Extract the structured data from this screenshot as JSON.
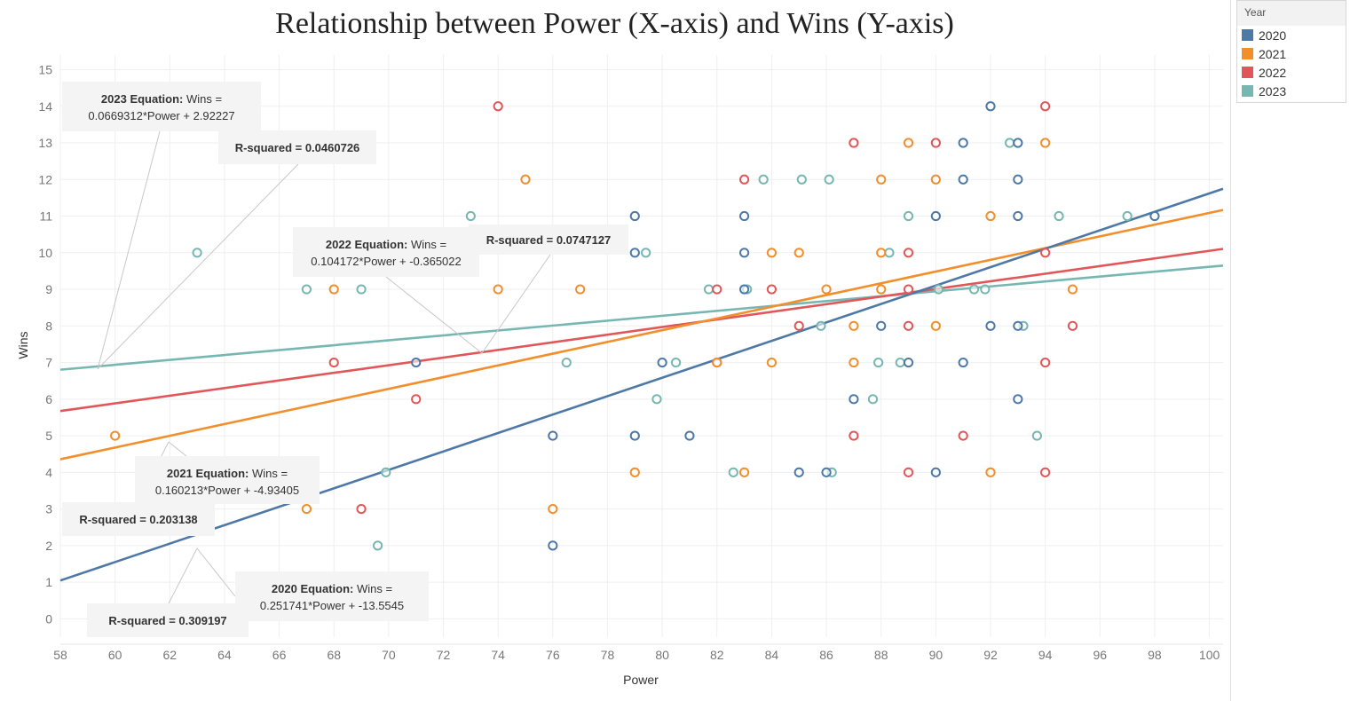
{
  "title": "Relationship between Power (X-axis) and Wins (Y-axis)",
  "legend": {
    "title": "Year",
    "items": [
      {
        "label": "2020",
        "color": "#4e79a7"
      },
      {
        "label": "2021",
        "color": "#f28e2b"
      },
      {
        "label": "2022",
        "color": "#e15759"
      },
      {
        "label": "2023",
        "color": "#76b7b2"
      }
    ]
  },
  "annotations": [
    {
      "series": "2023",
      "bold": "2023 Equation:",
      "text1": " Wins =",
      "text2": "0.0669312*Power + 2.92227"
    },
    {
      "series": "2023",
      "bold": "R-squared = 0.0460726",
      "text1": "",
      "text2": ""
    },
    {
      "series": "2022",
      "bold": "2022 Equation:",
      "text1": " Wins =",
      "text2": "0.104172*Power + -0.365022"
    },
    {
      "series": "2022",
      "bold": "R-squared = 0.0747127",
      "text1": "",
      "text2": ""
    },
    {
      "series": "2021",
      "bold": "2021 Equation:",
      "text1": " Wins =",
      "text2": "0.160213*Power + -4.93405"
    },
    {
      "series": "2021",
      "bold": "R-squared = 0.203138",
      "text1": "",
      "text2": ""
    },
    {
      "series": "2020",
      "bold": "2020 Equation:",
      "text1": " Wins =",
      "text2": "0.251741*Power + -13.5545"
    },
    {
      "series": "2020",
      "bold": "R-squared = 0.309197",
      "text1": "",
      "text2": ""
    }
  ],
  "chart_data": {
    "type": "scatter",
    "title": "Relationship between Power (X-axis) and Wins (Y-axis)",
    "xlabel": "Power",
    "ylabel": "Wins",
    "xlim": [
      58,
      100.5
    ],
    "ylim": [
      -0.5,
      15.4
    ],
    "xticks": [
      58,
      60,
      62,
      64,
      66,
      68,
      70,
      72,
      74,
      76,
      78,
      80,
      82,
      84,
      86,
      88,
      90,
      92,
      94,
      96,
      98,
      100
    ],
    "yticks": [
      0,
      1,
      2,
      3,
      4,
      5,
      6,
      7,
      8,
      9,
      10,
      11,
      12,
      13,
      14,
      15
    ],
    "grid": true,
    "legend_position": "top-right",
    "series": [
      {
        "name": "2020",
        "color": "#4e79a7",
        "trend": {
          "slope": 0.251741,
          "intercept": -13.5545
        },
        "points": [
          [
            92,
            14
          ],
          [
            91,
            13
          ],
          [
            93,
            13
          ],
          [
            91,
            12
          ],
          [
            93,
            12
          ],
          [
            79,
            11
          ],
          [
            83,
            11
          ],
          [
            90,
            11
          ],
          [
            93,
            11
          ],
          [
            98,
            11
          ],
          [
            79,
            10
          ],
          [
            83,
            10
          ],
          [
            83,
            9
          ],
          [
            88,
            8
          ],
          [
            92,
            8
          ],
          [
            93,
            8
          ],
          [
            71,
            7
          ],
          [
            80,
            7
          ],
          [
            89,
            7
          ],
          [
            91,
            7
          ],
          [
            87,
            6
          ],
          [
            93,
            6
          ],
          [
            76,
            5
          ],
          [
            79,
            5
          ],
          [
            81,
            5
          ],
          [
            85,
            4
          ],
          [
            86,
            4
          ],
          [
            90,
            4
          ],
          [
            76,
            2
          ]
        ]
      },
      {
        "name": "2021",
        "color": "#f28e2b",
        "trend": {
          "slope": 0.160213,
          "intercept": -4.93405
        },
        "points": [
          [
            89,
            13
          ],
          [
            94,
            13
          ],
          [
            75,
            12
          ],
          [
            88,
            12
          ],
          [
            90,
            12
          ],
          [
            92,
            11
          ],
          [
            84,
            10
          ],
          [
            85,
            10
          ],
          [
            88,
            10
          ],
          [
            68,
            9
          ],
          [
            74,
            9
          ],
          [
            77,
            9
          ],
          [
            86,
            9
          ],
          [
            88,
            9
          ],
          [
            95,
            9
          ],
          [
            87,
            8
          ],
          [
            90,
            8
          ],
          [
            82,
            7
          ],
          [
            84,
            7
          ],
          [
            87,
            7
          ],
          [
            60,
            5
          ],
          [
            79,
            4
          ],
          [
            83,
            4
          ],
          [
            92,
            4
          ],
          [
            67,
            3
          ],
          [
            76,
            3
          ]
        ]
      },
      {
        "name": "2022",
        "color": "#e15759",
        "trend": {
          "slope": 0.104172,
          "intercept": -0.365022
        },
        "points": [
          [
            74,
            14
          ],
          [
            94,
            14
          ],
          [
            87,
            13
          ],
          [
            90,
            13
          ],
          [
            83,
            12
          ],
          [
            89,
            10
          ],
          [
            94,
            10
          ],
          [
            82,
            9
          ],
          [
            84,
            9
          ],
          [
            89,
            9
          ],
          [
            85,
            8
          ],
          [
            89,
            8
          ],
          [
            95,
            8
          ],
          [
            68,
            7
          ],
          [
            82,
            7
          ],
          [
            94,
            7
          ],
          [
            71,
            6
          ],
          [
            87,
            5
          ],
          [
            91,
            5
          ],
          [
            89,
            4
          ],
          [
            94,
            4
          ],
          [
            69,
            3
          ]
        ]
      },
      {
        "name": "2023",
        "color": "#76b7b2",
        "trend": {
          "slope": 0.0669312,
          "intercept": 2.92227
        },
        "points": [
          [
            92.7,
            13
          ],
          [
            83.7,
            12
          ],
          [
            85.1,
            12
          ],
          [
            86.1,
            12
          ],
          [
            73,
            11
          ],
          [
            89,
            11
          ],
          [
            94.5,
            11
          ],
          [
            97,
            11
          ],
          [
            63,
            10
          ],
          [
            79.4,
            10
          ],
          [
            88.3,
            10
          ],
          [
            67,
            9
          ],
          [
            69,
            9
          ],
          [
            81.7,
            9
          ],
          [
            83.1,
            9
          ],
          [
            90.1,
            9
          ],
          [
            91.4,
            9
          ],
          [
            91.8,
            9
          ],
          [
            85.8,
            8
          ],
          [
            93.2,
            8
          ],
          [
            76.5,
            7
          ],
          [
            80.5,
            7
          ],
          [
            87.9,
            7
          ],
          [
            88.7,
            7
          ],
          [
            79.8,
            6
          ],
          [
            87.7,
            6
          ],
          [
            93.7,
            5
          ],
          [
            69.9,
            4
          ],
          [
            82.6,
            4
          ],
          [
            86.2,
            4
          ],
          [
            69.6,
            2
          ]
        ]
      }
    ]
  }
}
